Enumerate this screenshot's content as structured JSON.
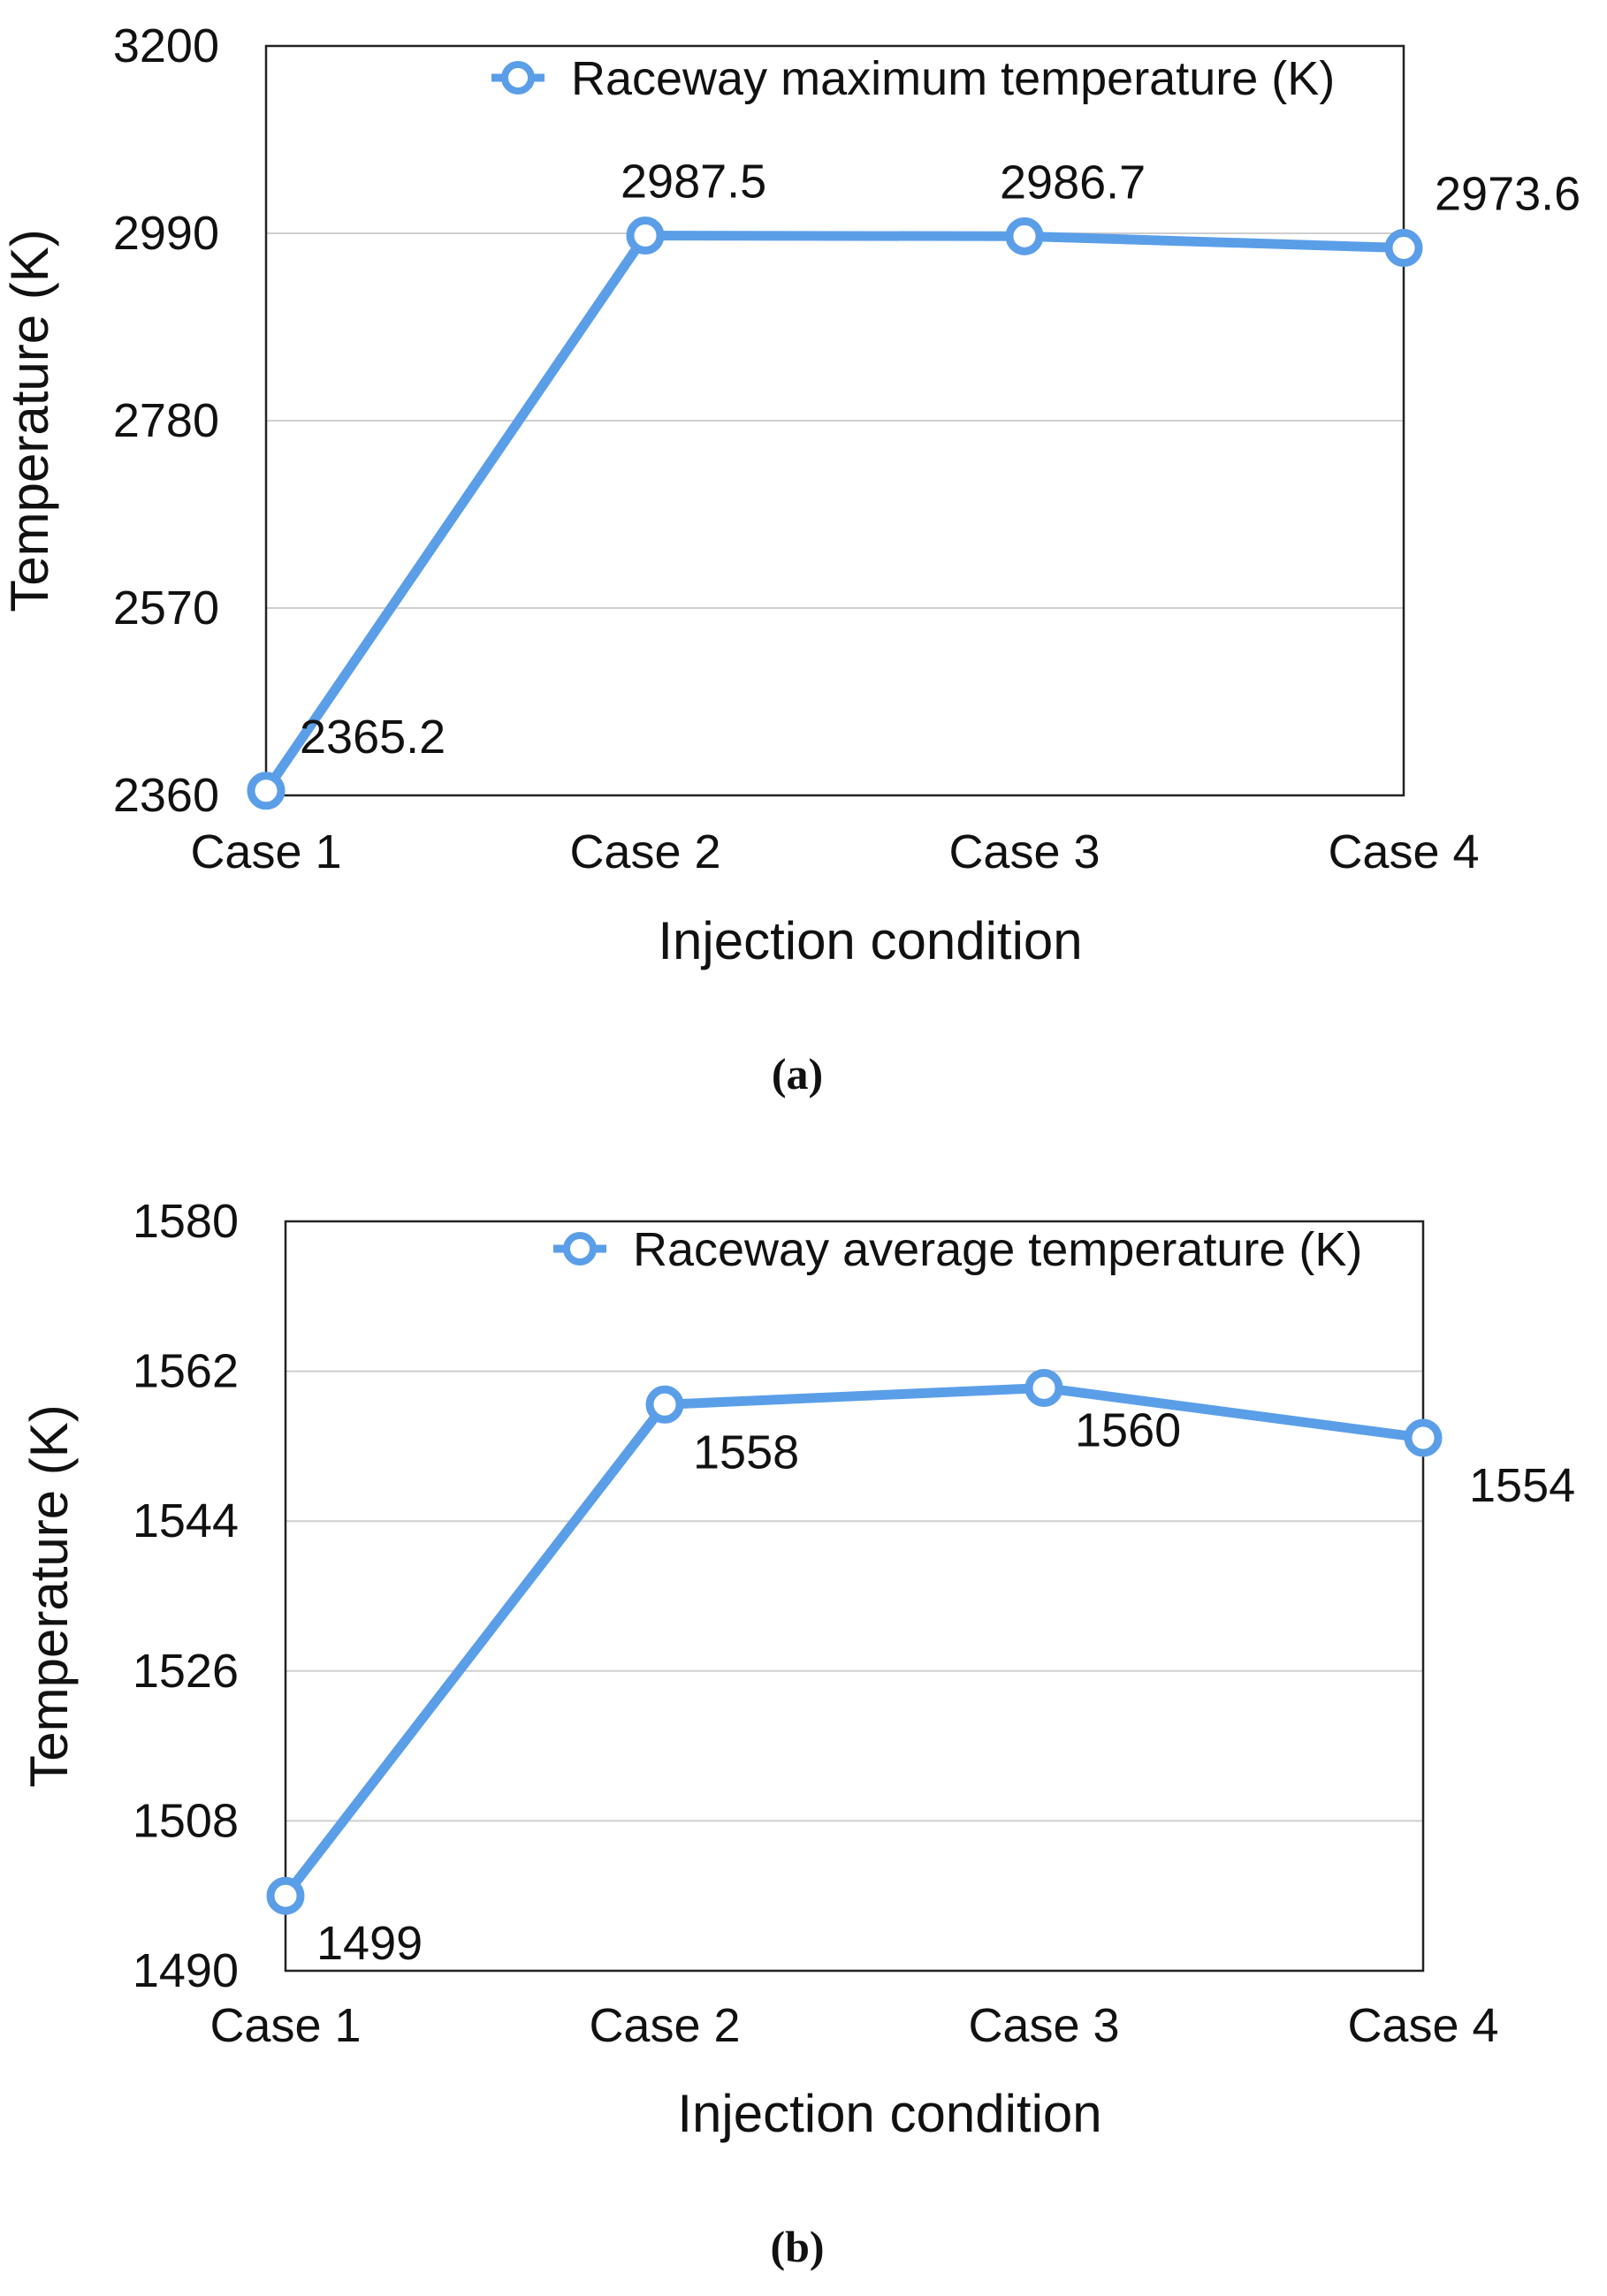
{
  "chart_data": [
    {
      "type": "line",
      "panel_label": "(a)",
      "xlabel": "Injection condition",
      "ylabel": "Temperature (K)",
      "categories": [
        "Case 1",
        "Case 2",
        "Case 3",
        "Case 4"
      ],
      "ylim": [
        2360,
        3200
      ],
      "yticks": [
        "2360",
        "2570",
        "2780",
        "2990",
        "3200"
      ],
      "grid": true,
      "legend": "top-right",
      "series": [
        {
          "name": "Raceway maximum temperature (K)",
          "values": [
            2365.2,
            2987.5,
            2986.7,
            2973.6
          ],
          "labels": [
            "2365.2",
            "2987.5",
            "2986.7",
            "2973.6"
          ]
        }
      ]
    },
    {
      "type": "line",
      "panel_label": "(b)",
      "xlabel": "Injection condition",
      "ylabel": "Temperature (K)",
      "categories": [
        "Case 1",
        "Case 2",
        "Case 3",
        "Case 4"
      ],
      "ylim": [
        1490,
        1580
      ],
      "yticks": [
        "1490",
        "1508",
        "1526",
        "1544",
        "1562",
        "1580"
      ],
      "grid": true,
      "legend": "top-right",
      "series": [
        {
          "name": "Raceway average temperature (K)",
          "values": [
            1499,
            1558,
            1560,
            1554
          ],
          "labels": [
            "1499",
            "1558",
            "1560",
            "1554"
          ]
        }
      ]
    }
  ],
  "colors": {
    "series": "#5b9ee8",
    "grid": "#cfcfcf",
    "frame": "#222222",
    "text": "#111111"
  }
}
